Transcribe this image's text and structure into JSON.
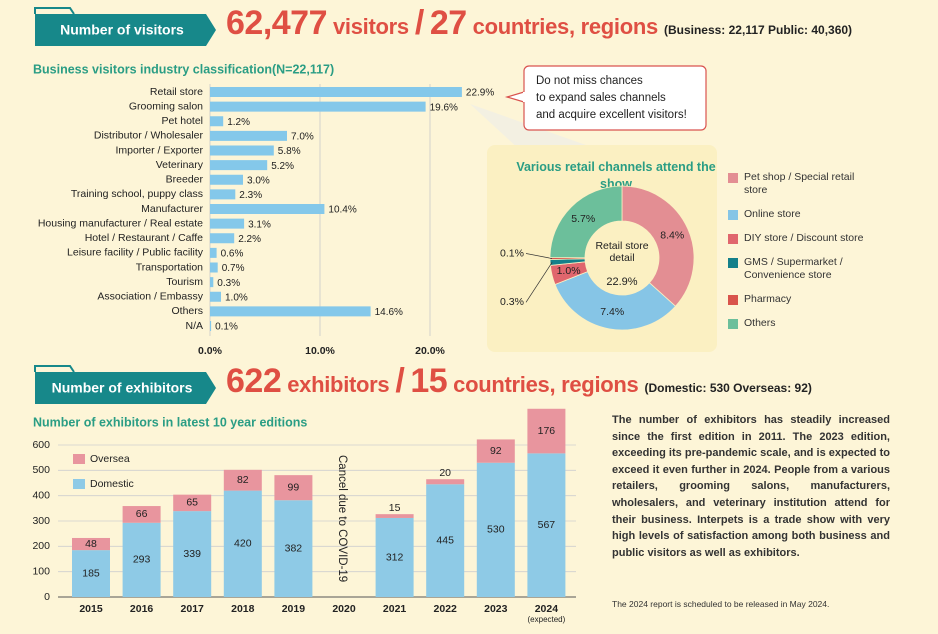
{
  "visitors": {
    "heading": "Number of visitors",
    "total": "62,477",
    "total_unit": "visitors",
    "separator": "/",
    "countries": "27",
    "countries_unit": "countries, regions",
    "breakdown": "(Business: 22,117 Public: 40,360)"
  },
  "callout": [
    "Do not miss chances",
    "to expand sales channels",
    "and acquire excellent visitors!"
  ],
  "exhibitors": {
    "heading": "Number of exhibitors",
    "total": "622",
    "total_unit": "exhibitors",
    "separator": "/",
    "countries": "15",
    "countries_unit": "countries, regions",
    "breakdown": "(Domestic: 530 Overseas: 92)"
  },
  "description": "The number of exhibitors has steadily increased since the first edition in 2011. The 2023 edition, exceeding its pre-pandemic scale, and is expected to exceed it even further in 2024. People from a various retailers, grooming salons, manufacturers, wholesalers, and veterinary institution attend for their business. Interpets is a trade show with very high levels of satisfaction among both business and public visitors as well as exhibitors.",
  "note": "The 2024 report is scheduled to be released in May 2024.",
  "chart_data": [
    {
      "type": "hbar",
      "title": "Business visitors industry classification(N=22,117)",
      "categories": [
        "Retail store",
        "Grooming salon",
        "Pet hotel",
        "Distributor / Wholesaler",
        "Importer / Exporter",
        "Veterinary",
        "Breeder",
        "Training school, puppy class",
        "Manufacturer",
        "Housing manufacturer / Real estate",
        "Hotel / Restaurant / Caffe",
        "Leisure facility / Public facility",
        "Transportation",
        "Tourism",
        "Association / Embassy",
        "Others",
        "N/A"
      ],
      "values": [
        22.9,
        19.6,
        1.2,
        7.0,
        5.8,
        5.2,
        3.0,
        2.3,
        10.4,
        3.1,
        2.2,
        0.6,
        0.7,
        0.3,
        1.0,
        14.6,
        0.1
      ],
      "value_labels": [
        "22.9%",
        "19.6%",
        "1.2%",
        "7.0%",
        "5.8%",
        "5.2%",
        "3.0%",
        "2.3%",
        "10.4%",
        "3.1%",
        "2.2%",
        "0.6%",
        "0.7%",
        "0.3%",
        "1.0%",
        "14.6%",
        "0.1%"
      ],
      "color": "#84c8ea",
      "xlim": [
        0,
        23
      ],
      "xticks": [
        {
          "value": 0,
          "label": "0.0%"
        },
        {
          "value": 10,
          "label": "10.0%"
        },
        {
          "value": 20,
          "label": "20.0%"
        }
      ],
      "grid": true
    },
    {
      "type": "donut",
      "title": "Various retail channels attend the show",
      "center_label": "Retail store detail",
      "center_value_label": "22.9%",
      "categories": [
        "Pet shop / Special retail store",
        "Online store",
        "DIY store / Discount store",
        "GMS / Supermarket / Convenience store",
        "Pharmacy",
        "Others"
      ],
      "values": [
        8.4,
        7.4,
        1.0,
        0.3,
        0.1,
        5.7
      ],
      "value_labels": [
        "8.4%",
        "7.4%",
        "1.0%",
        "0.3%",
        "0.1%",
        "5.7%"
      ],
      "colors": [
        "#e38e93",
        "#86c5e6",
        "#e0666d",
        "#14808a",
        "#d9544c",
        "#6cbf9b"
      ]
    },
    {
      "type": "stacked_bar",
      "title": "Number of exhibitors in latest 10 year editions",
      "categories": [
        "2015",
        "2016",
        "2017",
        "2018",
        "2019",
        "2020",
        "2021",
        "2022",
        "2023",
        "2024"
      ],
      "series": [
        {
          "name": "Domestic",
          "color": "#8ecae6",
          "values": [
            185,
            293,
            339,
            420,
            382,
            null,
            312,
            445,
            530,
            567
          ]
        },
        {
          "name": "Oversea",
          "color": "#e8959e",
          "values": [
            48,
            66,
            65,
            82,
            99,
            null,
            15,
            20,
            92,
            176
          ]
        }
      ],
      "ylim": [
        0,
        750
      ],
      "yticks": [
        0,
        100,
        200,
        300,
        400,
        500,
        600
      ],
      "grid": true,
      "cancel_note": "Cancel due to COVID-19",
      "expected_note": "(expected)"
    }
  ]
}
